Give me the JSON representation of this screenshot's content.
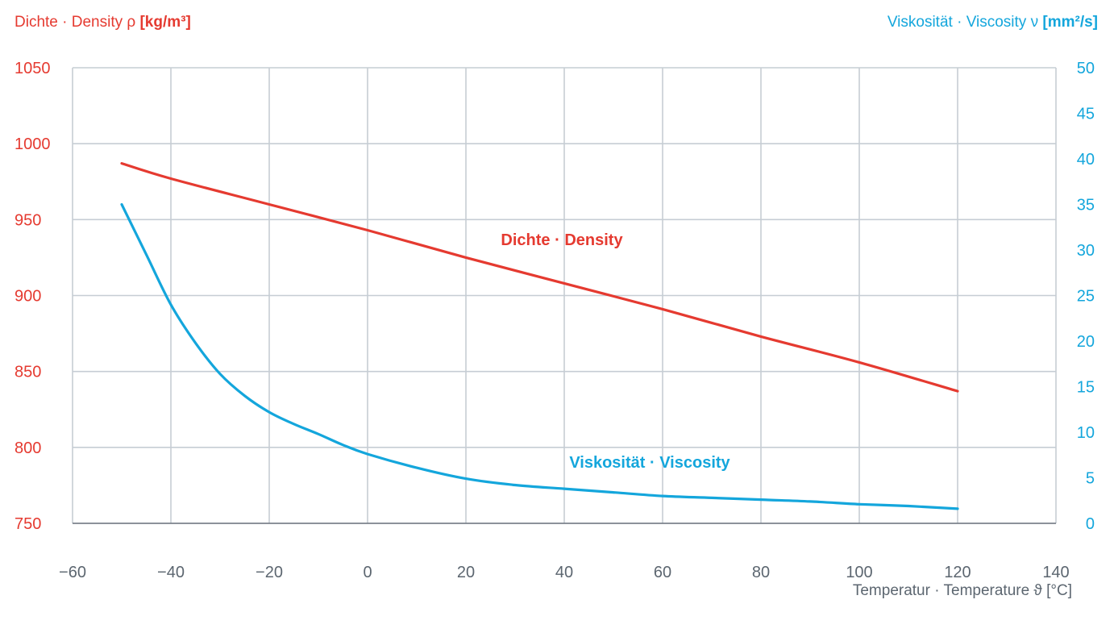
{
  "colors": {
    "density": "#e53a30",
    "viscosity": "#14a6dc",
    "grid": "#c6cdd4",
    "axis_text": "#5c6670"
  },
  "titles": {
    "left_prefix": "Dichte · Density ρ",
    "left_unit": "[kg/m³]",
    "right_prefix": "Viskosität · Viscosity ν",
    "right_unit": "[mm²/s]",
    "x_prefix": "Temperatur · Temperature ϑ",
    "x_unit": "[°C]"
  },
  "chart_data": {
    "type": "line",
    "grid": true,
    "x_ticks": [
      "−60",
      "−40",
      "−20",
      "0",
      "20",
      "40",
      "60",
      "80",
      "100",
      "120",
      "140"
    ],
    "y_left_ticks": [
      "1050",
      "1000",
      "950",
      "900",
      "850",
      "800",
      "750"
    ],
    "y_right_ticks": [
      "50",
      "45",
      "40",
      "35",
      "30",
      "25",
      "20",
      "15",
      "10",
      "5",
      "0"
    ],
    "xlim": [
      -60,
      140
    ],
    "ylim_left": [
      750,
      1050
    ],
    "ylim_right": [
      0,
      50
    ],
    "series": [
      {
        "name": "Dichte · Density",
        "axis": "left",
        "x": [
          -50,
          -40,
          -20,
          0,
          20,
          40,
          60,
          80,
          100,
          120
        ],
        "y": [
          987,
          977,
          960,
          943,
          925,
          908,
          891,
          873,
          856,
          837
        ]
      },
      {
        "name": "Viskosität · Viscosity",
        "axis": "right",
        "x": [
          -50,
          -45,
          -40,
          -35,
          -30,
          -25,
          -20,
          -15,
          -10,
          -5,
          0,
          10,
          20,
          30,
          40,
          50,
          60,
          70,
          80,
          90,
          100,
          110,
          120
        ],
        "y": [
          35,
          29.5,
          24,
          19.8,
          16.4,
          14,
          12.2,
          10.9,
          9.8,
          8.6,
          7.6,
          6.1,
          4.9,
          4.2,
          3.8,
          3.4,
          3.0,
          2.8,
          2.6,
          2.4,
          2.1,
          1.9,
          1.6
        ]
      }
    ]
  }
}
